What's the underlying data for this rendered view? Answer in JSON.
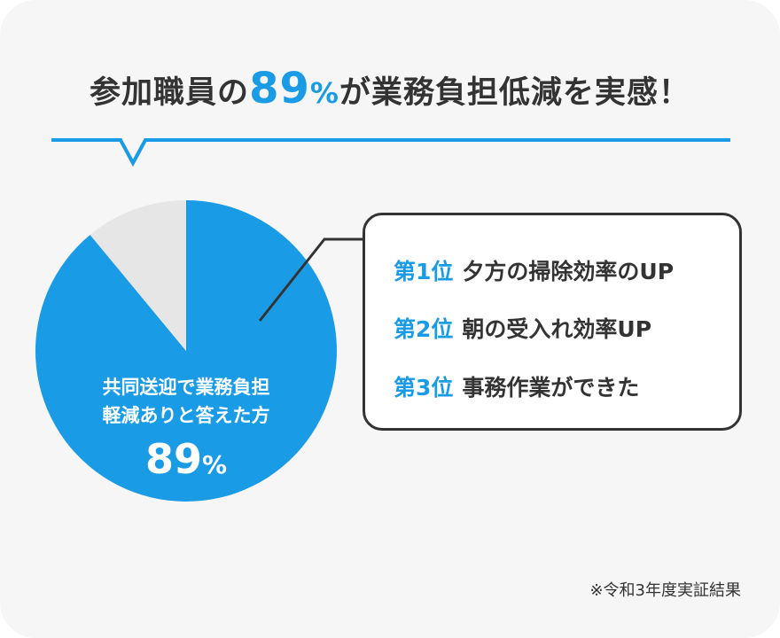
{
  "headline": {
    "prefix": "参加職員の",
    "number": "89",
    "percent": "%",
    "suffix": "が業務負担低減を実感！"
  },
  "chart_data": {
    "type": "pie",
    "slices": [
      {
        "value": 89,
        "color": "#1a9be6"
      },
      {
        "value": 11,
        "color": "#e6e6e6"
      }
    ],
    "annotation_lines": [
      "共同送迎で業務負担",
      "軽減ありと答えた方"
    ],
    "annotation_value": "89",
    "annotation_unit": "%"
  },
  "ranking": [
    {
      "rank": "第1位",
      "text": "夕方の掃除効率のUP"
    },
    {
      "rank": "第2位",
      "text": "朝の受入れ効率UP"
    },
    {
      "rank": "第3位",
      "text": "事務作業ができた"
    }
  ],
  "footnote": "※令和3年度実証結果",
  "colors": {
    "accent": "#1a9be6",
    "remainder": "#e6e6e6",
    "text": "#333333",
    "background": "#f6f6f6"
  }
}
